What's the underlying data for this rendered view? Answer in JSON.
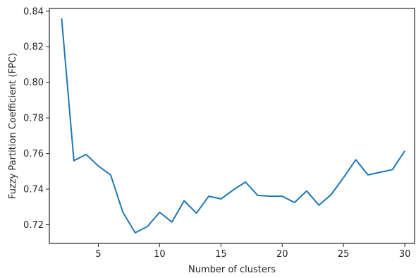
{
  "chart_data": {
    "type": "line",
    "xlabel": "Number of clusters",
    "ylabel": "Fuzzy Partition Coefficient (FPC)",
    "xlim": [
      1.0,
      30.8
    ],
    "ylim": [
      0.7095,
      0.8415
    ],
    "x_ticks": [
      5,
      10,
      15,
      20,
      25,
      30
    ],
    "x_tick_labels": [
      "5",
      "10",
      "15",
      "20",
      "25",
      "30"
    ],
    "y_ticks": [
      0.72,
      0.74,
      0.76,
      0.78,
      0.8,
      0.82,
      0.84
    ],
    "y_tick_labels": [
      "0.72",
      "0.74",
      "0.76",
      "0.78",
      "0.80",
      "0.82",
      "0.84"
    ],
    "grid": false,
    "series": [
      {
        "color": "#1f77b4",
        "x": [
          2,
          3,
          4,
          5,
          6,
          7,
          8,
          9,
          10,
          11,
          12,
          13,
          14,
          15,
          16,
          17,
          18,
          19,
          20,
          21,
          22,
          23,
          24,
          25,
          26,
          27,
          28,
          29,
          30
        ],
        "y": [
          0.836,
          0.756,
          0.7595,
          0.753,
          0.748,
          0.727,
          0.7155,
          0.719,
          0.727,
          0.7215,
          0.7335,
          0.7265,
          0.736,
          0.7345,
          0.7395,
          0.744,
          0.7365,
          0.736,
          0.736,
          0.7325,
          0.739,
          0.731,
          0.737,
          0.7465,
          0.7565,
          0.748,
          0.7495,
          0.751,
          0.7615
        ]
      }
    ]
  }
}
